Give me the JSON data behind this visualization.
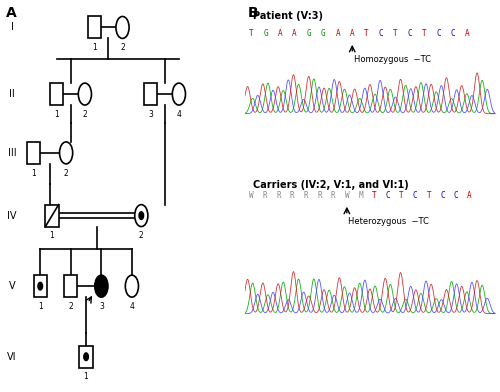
{
  "title_A": "A",
  "title_B": "B",
  "patient_label": "Patient (V:3)",
  "patient_seq": [
    "T",
    "G",
    "A",
    "A",
    "G",
    "G",
    "A",
    "A",
    "T",
    "C",
    "T",
    "C",
    "T",
    "C",
    "C",
    "A"
  ],
  "patient_seq_colors": [
    "#cc0000",
    "#008800",
    "#cc0000",
    "#cc0000",
    "#008800",
    "#008800",
    "#cc0000",
    "#cc0000",
    "#cc0000",
    "#0000cc",
    "#cc0000",
    "#0000cc",
    "#cc0000",
    "#0000cc",
    "#0000cc",
    "#cc0000"
  ],
  "patient_arrow_label": "Homozygous  −TC",
  "carrier_label": "Carriers (IV:2, V:1, and VI:1)",
  "carrier_seq": [
    "W",
    "R",
    "R",
    "R",
    "R",
    "R",
    "R",
    "W",
    "M",
    "T",
    "C",
    "T",
    "C",
    "T",
    "C",
    "C",
    "A"
  ],
  "carrier_seq_colors": [
    "#888888",
    "#888888",
    "#888888",
    "#888888",
    "#888888",
    "#888888",
    "#888888",
    "#888888",
    "#888888",
    "#cc0000",
    "#0000cc",
    "#cc0000",
    "#0000cc",
    "#cc0000",
    "#0000cc",
    "#0000cc",
    "#cc0000"
  ],
  "carrier_arrow_label": "Heterozygous  −TC",
  "background_color": "#ffffff",
  "patient_green_peaks": [
    0.3,
    0.9,
    1.5,
    2.1,
    2.7,
    3.3,
    3.9,
    4.5,
    5.1,
    5.7,
    6.3,
    6.9,
    7.5,
    8.1,
    8.7,
    9.3
  ],
  "patient_blue_peaks": [
    0.5,
    1.1,
    1.7,
    2.3,
    2.9,
    3.5,
    4.1,
    4.7,
    5.3,
    5.9,
    6.5,
    7.1,
    7.7,
    8.3,
    8.9,
    9.5
  ],
  "patient_red_peaks": [
    0.1,
    0.7,
    1.3,
    1.9,
    2.5,
    3.1,
    3.7,
    4.3,
    4.9,
    5.5,
    6.1,
    6.7,
    7.3,
    7.9,
    8.5,
    9.1
  ],
  "carrier_green_peaks": [
    0.3,
    0.9,
    1.5,
    2.1,
    2.7,
    3.3,
    3.9,
    4.5,
    5.1,
    5.7,
    6.3,
    6.9,
    7.5,
    8.1,
    8.7,
    9.3
  ],
  "carrier_blue_peaks": [
    0.5,
    1.1,
    1.7,
    2.3,
    2.9,
    3.5,
    4.1,
    4.7,
    5.3,
    5.9,
    6.5,
    7.1,
    7.7,
    8.3,
    8.9,
    9.5
  ],
  "carrier_red_peaks": [
    0.1,
    0.7,
    1.3,
    1.9,
    2.5,
    3.1,
    3.7,
    4.3,
    4.9,
    5.5,
    6.1,
    6.7,
    7.3,
    7.9,
    8.5,
    9.1
  ]
}
